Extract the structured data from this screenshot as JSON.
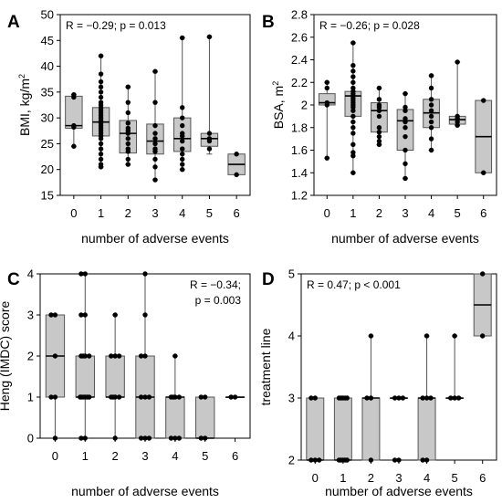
{
  "chart_data": [
    {
      "id": "A",
      "type": "box",
      "panel_label": "A",
      "xlabel": "number of adverse events",
      "ylabel": "BMI, kg/m",
      "ylabel_sup": "2",
      "annotation": [
        "R = −0.29; p = 0.013"
      ],
      "annotation_anchor": "top-left",
      "ylim": [
        15,
        50
      ],
      "yticks": [
        15,
        20,
        25,
        30,
        35,
        40,
        45,
        50
      ],
      "categories": [
        "0",
        "1",
        "2",
        "3",
        "4",
        "5",
        "6"
      ],
      "boxes": [
        {
          "min": 24.5,
          "q1": 28.0,
          "median": 28.5,
          "q3": 34.2,
          "max": 34.5
        },
        {
          "min": 20.5,
          "q1": 26.5,
          "median": 29.2,
          "q3": 32.0,
          "max": 42.0
        },
        {
          "min": 21.0,
          "q1": 23.2,
          "median": 27.0,
          "q3": 29.5,
          "max": 36.0
        },
        {
          "min": 18.0,
          "q1": 23.0,
          "median": 25.5,
          "q3": 28.8,
          "max": 39.0
        },
        {
          "min": 20.0,
          "q1": 23.5,
          "median": 26.0,
          "q3": 30.0,
          "max": 45.5
        },
        {
          "min": 23.0,
          "q1": 24.5,
          "median": 26.0,
          "q3": 27.0,
          "max": 45.7
        },
        {
          "min": 19.0,
          "q1": 19.0,
          "median": 21.0,
          "q3": 23.0,
          "max": 23.0
        }
      ],
      "points": [
        [
          34.5,
          34.0,
          28.5,
          28.2,
          24.5
        ],
        [
          42.0,
          38.5,
          37.0,
          36.0,
          35.0,
          34.0,
          33.0,
          32.5,
          32.0,
          31.5,
          31.0,
          30.5,
          30.0,
          29.5,
          29.0,
          28.5,
          28.0,
          27.5,
          27.0,
          26.5,
          26.0,
          25.0,
          24.0,
          23.0,
          22.0,
          21.0,
          20.5
        ],
        [
          36.0,
          33.0,
          31.0,
          29.0,
          28.0,
          27.5,
          27.0,
          26.0,
          25.0,
          24.0,
          23.5,
          22.0,
          21.0
        ],
        [
          39.0,
          33.0,
          28.5,
          27.0,
          26.0,
          25.0,
          24.0,
          23.5,
          22.0,
          20.5,
          18.0
        ],
        [
          45.5,
          32.0,
          30.0,
          28.5,
          27.0,
          26.5,
          25.5,
          24.0,
          23.0,
          22.0,
          21.0,
          20.0
        ],
        [
          45.7,
          27.0,
          26.0,
          25.5,
          24.0
        ],
        [
          23.0,
          19.0
        ]
      ]
    },
    {
      "id": "B",
      "type": "box",
      "panel_label": "B",
      "xlabel": "number of adverse events",
      "ylabel": "BSA, m",
      "ylabel_sup": "2",
      "annotation": [
        "R = −0.26; p = 0.028"
      ],
      "annotation_anchor": "top-left",
      "ylim": [
        1.2,
        2.8
      ],
      "yticks": [
        1.2,
        1.4,
        1.6,
        1.8,
        2.0,
        2.2,
        2.4,
        2.6,
        2.8
      ],
      "categories": [
        "0",
        "1",
        "2",
        "3",
        "4",
        "5",
        "6"
      ],
      "boxes": [
        {
          "min": 1.53,
          "q1": 2.0,
          "median": 2.02,
          "q3": 2.1,
          "max": 2.2
        },
        {
          "min": 1.4,
          "q1": 1.9,
          "median": 2.08,
          "q3": 2.12,
          "max": 2.55
        },
        {
          "min": 1.65,
          "q1": 1.76,
          "median": 1.95,
          "q3": 2.02,
          "max": 2.15
        },
        {
          "min": 1.35,
          "q1": 1.6,
          "median": 1.86,
          "q3": 1.96,
          "max": 2.1
        },
        {
          "min": 1.6,
          "q1": 1.8,
          "median": 1.93,
          "q3": 2.05,
          "max": 2.26
        },
        {
          "min": 1.82,
          "q1": 1.83,
          "median": 1.87,
          "q3": 1.9,
          "max": 2.38
        },
        {
          "min": 1.4,
          "q1": 1.4,
          "median": 1.72,
          "q3": 2.04,
          "max": 2.04
        }
      ],
      "points": [
        [
          2.2,
          2.15,
          2.02,
          2.0,
          1.53
        ],
        [
          2.55,
          2.35,
          2.3,
          2.25,
          2.2,
          2.15,
          2.12,
          2.1,
          2.08,
          2.06,
          2.04,
          2.02,
          2.0,
          1.98,
          1.95,
          1.9,
          1.85,
          1.8,
          1.75,
          1.65,
          1.58,
          1.55,
          1.4
        ],
        [
          2.15,
          2.05,
          2.0,
          1.98,
          1.95,
          1.9,
          1.8,
          1.76,
          1.72,
          1.68,
          1.65
        ],
        [
          2.1,
          1.98,
          1.95,
          1.88,
          1.85,
          1.8,
          1.72,
          1.6,
          1.48,
          1.35
        ],
        [
          2.26,
          2.15,
          2.05,
          2.0,
          1.95,
          1.9,
          1.85,
          1.8,
          1.7,
          1.6
        ],
        [
          2.38,
          1.9,
          1.88,
          1.85,
          1.82
        ],
        [
          2.04,
          1.4
        ]
      ]
    },
    {
      "id": "C",
      "type": "box",
      "panel_label": "C",
      "xlabel": "number of adverse events",
      "ylabel": "Heng (IMDC) score",
      "ylabel_sup": "",
      "annotation": [
        "R = −0.34;",
        "p = 0.003"
      ],
      "annotation_anchor": "top-right",
      "ylim": [
        0,
        4
      ],
      "yticks": [
        0,
        1,
        2,
        3,
        4
      ],
      "categories": [
        "0",
        "1",
        "2",
        "3",
        "4",
        "5",
        "6"
      ],
      "boxes": [
        {
          "min": 0,
          "q1": 1,
          "median": 2,
          "q3": 3,
          "max": 3
        },
        {
          "min": 0,
          "q1": 1,
          "median": 1,
          "q3": 2,
          "max": 4
        },
        {
          "min": 0,
          "q1": 1,
          "median": 1,
          "q3": 2,
          "max": 3
        },
        {
          "min": 0,
          "q1": 0,
          "median": 1,
          "q3": 2,
          "max": 4
        },
        {
          "min": 0,
          "q1": 0,
          "median": 1,
          "q3": 1,
          "max": 2
        },
        {
          "min": 0,
          "q1": 0,
          "median": 0,
          "q3": 1,
          "max": 1
        },
        {
          "min": 1,
          "q1": 1,
          "median": 1,
          "q3": 1,
          "max": 1
        }
      ],
      "points": [
        [
          3,
          3,
          2,
          1,
          1,
          0
        ],
        [
          4,
          4,
          3,
          3,
          2,
          2,
          2,
          2,
          1,
          1,
          1,
          1,
          1,
          1,
          0,
          0
        ],
        [
          3,
          2,
          2,
          2,
          1,
          1,
          1,
          1,
          0
        ],
        [
          4,
          3,
          2,
          2,
          1,
          1,
          1,
          0,
          0,
          0
        ],
        [
          2,
          1,
          1,
          1,
          1,
          0,
          0,
          0
        ],
        [
          1,
          1,
          0,
          0
        ],
        [
          1,
          1
        ]
      ]
    },
    {
      "id": "D",
      "type": "box",
      "panel_label": "D",
      "xlabel": "number of adverse events",
      "ylabel": "treatment line",
      "ylabel_sup": "",
      "annotation": [
        "R = 0.47; p < 0.001"
      ],
      "annotation_anchor": "top-left",
      "ylim": [
        2,
        5
      ],
      "yticks": [
        2,
        3,
        4,
        5
      ],
      "categories": [
        "0",
        "1",
        "2",
        "3",
        "4",
        "5",
        "6"
      ],
      "boxes": [
        {
          "min": 2,
          "q1": 2,
          "median": 2,
          "q3": 3,
          "max": 3
        },
        {
          "min": 2,
          "q1": 2,
          "median": 2,
          "q3": 3,
          "max": 3
        },
        {
          "min": 2,
          "q1": 2,
          "median": 3,
          "q3": 3,
          "max": 4
        },
        {
          "min": 3,
          "q1": 3,
          "median": 3,
          "q3": 3,
          "max": 3
        },
        {
          "min": 2,
          "q1": 2,
          "median": 3,
          "q3": 3,
          "max": 4
        },
        {
          "min": 3,
          "q1": 3,
          "median": 3,
          "q3": 3,
          "max": 4
        },
        {
          "min": 4,
          "q1": 4,
          "median": 4.5,
          "q3": 5,
          "max": 5
        }
      ],
      "points": [
        [
          3,
          3,
          2,
          2,
          2
        ],
        [
          3,
          3,
          3,
          3,
          3,
          2,
          2,
          2,
          2,
          2
        ],
        [
          4,
          3,
          3,
          2
        ],
        [
          3,
          3,
          3,
          2,
          2
        ],
        [
          4,
          3,
          3,
          3,
          2,
          2
        ],
        [
          4,
          3,
          3,
          3
        ],
        [
          5,
          4
        ]
      ]
    }
  ]
}
